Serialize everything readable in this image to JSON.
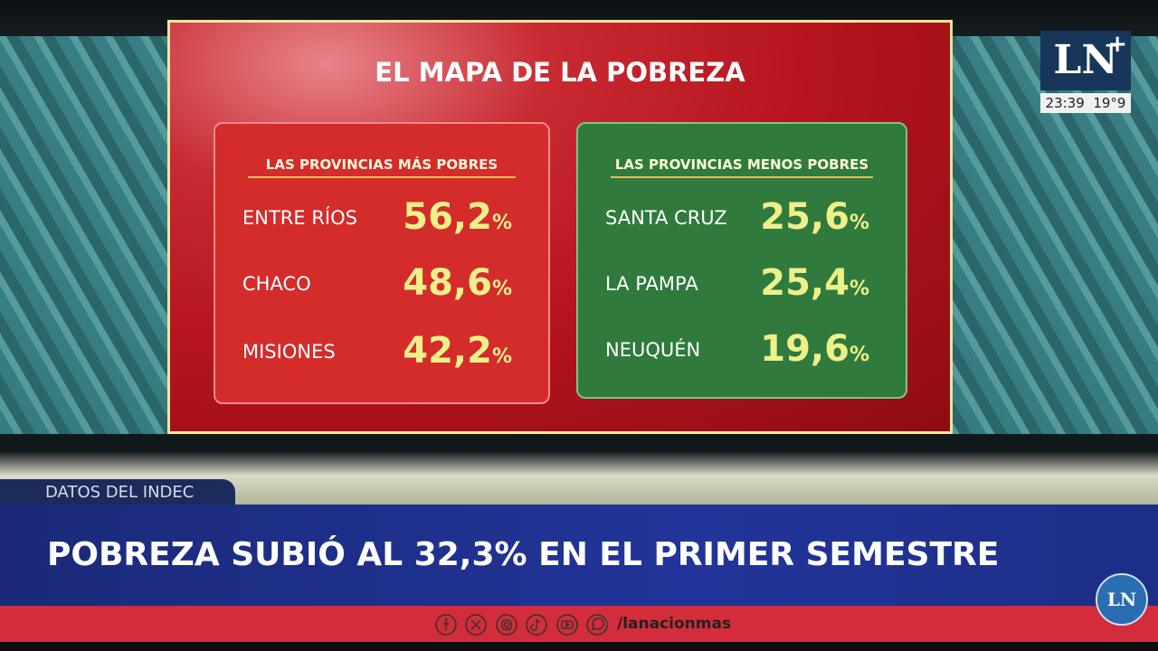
{
  "broadcast": {
    "logo": "LN",
    "logo_plus": "+",
    "time": "23:39",
    "temperature": "19°9"
  },
  "screen": {
    "title": "EL MAPA DE LA POBREZA",
    "panels": [
      {
        "heading": "LAS PROVINCIAS MÁS POBRES",
        "rows": [
          {
            "province": "ENTRE RÍOS",
            "value": "56,2",
            "unit": "%"
          },
          {
            "province": "CHACO",
            "value": "48,6",
            "unit": "%"
          },
          {
            "province": "MISIONES",
            "value": "42,2",
            "unit": "%"
          }
        ]
      },
      {
        "heading": "LAS PROVINCIAS MENOS POBRES",
        "rows": [
          {
            "province": "SANTA CRUZ",
            "value": "25,6",
            "unit": "%"
          },
          {
            "province": "LA PAMPA",
            "value": "25,4",
            "unit": "%"
          },
          {
            "province": "NEUQUÉN",
            "value": "19,6",
            "unit": "%"
          }
        ]
      }
    ]
  },
  "lower_third": {
    "tag": "DATOS DEL INDEC",
    "headline": "POBREZA SUBIÓ AL 32,3% EN EL PRIMER SEMESTRE",
    "handle": "/lanacionmas",
    "corner_logo": "LN"
  }
}
